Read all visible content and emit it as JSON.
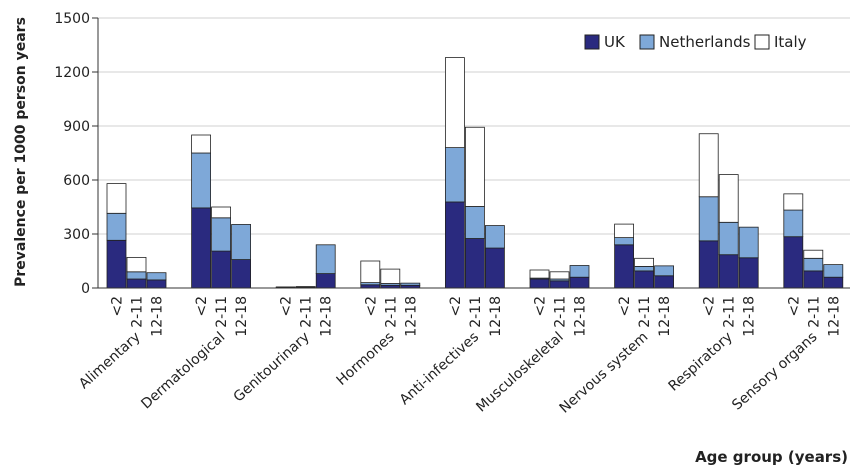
{
  "chart_data": {
    "type": "bar",
    "stacked": true,
    "ylabel": "Prevalence per 1000 person years",
    "xlabel": "Age group (years)",
    "ylim": [
      0,
      1500
    ],
    "yticks": [
      0,
      300,
      600,
      900,
      1200,
      1500
    ],
    "grid": true,
    "legend_position": "top-right",
    "age_groups": [
      "<2",
      "2-11",
      "12-18"
    ],
    "categories": [
      "Alimentary",
      "Dermatological",
      "Genitourinary",
      "Hormones",
      "Anti-infectives",
      "Musculoskeletal",
      "Nervous system",
      "Respiratory",
      "Sensory organs"
    ],
    "series": [
      {
        "name": "UK",
        "color": "#2a2a7f",
        "values": [
          [
            265,
            50,
            45
          ],
          [
            445,
            205,
            158
          ],
          [
            3,
            5,
            80
          ],
          [
            18,
            15,
            15
          ],
          [
            478,
            275,
            222
          ],
          [
            50,
            40,
            60
          ],
          [
            240,
            95,
            68
          ],
          [
            262,
            185,
            168
          ],
          [
            285,
            95,
            60
          ]
        ]
      },
      {
        "name": "Netherlands",
        "color": "#7ea8d8",
        "values": [
          [
            150,
            40,
            40
          ],
          [
            305,
            185,
            195
          ],
          [
            3,
            3,
            160
          ],
          [
            12,
            10,
            12
          ],
          [
            302,
            178,
            125
          ],
          [
            5,
            10,
            65
          ],
          [
            40,
            25,
            55
          ],
          [
            245,
            180,
            170
          ],
          [
            148,
            70,
            70
          ]
        ]
      },
      {
        "name": "Italy",
        "color": "#ffffff",
        "values": [
          [
            165,
            80,
            0
          ],
          [
            100,
            60,
            0
          ],
          [
            0,
            0,
            0
          ],
          [
            120,
            80,
            0
          ],
          [
            500,
            440,
            0
          ],
          [
            45,
            40,
            0
          ],
          [
            75,
            45,
            0
          ],
          [
            350,
            265,
            0
          ],
          [
            90,
            45,
            0
          ]
        ]
      }
    ]
  }
}
